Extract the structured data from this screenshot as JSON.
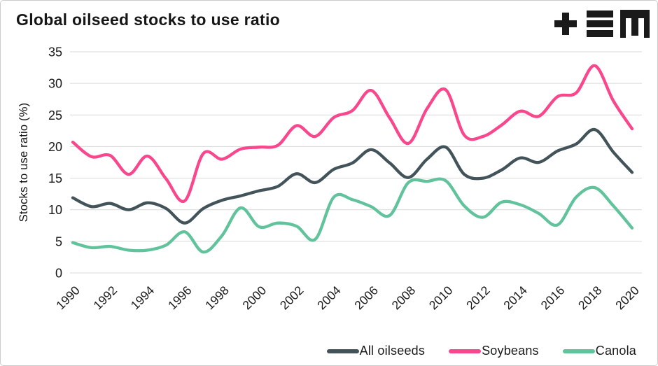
{
  "header": {
    "title": "Global oilseed stocks to use ratio",
    "logo_alt": "+EM"
  },
  "colors": {
    "all_oilseeds": "#42535a",
    "soybeans": "#f9468c",
    "canola": "#60c39c",
    "gridline": "#d9d9d9",
    "text": "#1a1a1a",
    "logo": "#1a1a1a",
    "card_border": "#cccccc"
  },
  "chart_data": {
    "type": "line",
    "title": "Global oilseed stocks to use ratio",
    "xlabel": "",
    "ylabel": "Stocks to use ratio (%)",
    "x": [
      1990,
      1991,
      1992,
      1993,
      1994,
      1995,
      1996,
      1997,
      1998,
      1999,
      2000,
      2001,
      2002,
      2003,
      2004,
      2005,
      2006,
      2007,
      2008,
      2009,
      2010,
      2011,
      2012,
      2013,
      2014,
      2015,
      2016,
      2017,
      2018,
      2019,
      2020
    ],
    "x_tick_labels": [
      "1990",
      "1992",
      "1994",
      "1996",
      "1998",
      "2000",
      "2002",
      "2004",
      "2006",
      "2008",
      "2010",
      "2012",
      "2014",
      "2016",
      "2018",
      "2020"
    ],
    "y_ticks": [
      0,
      5,
      10,
      15,
      20,
      25,
      30,
      35
    ],
    "ylim": [
      0,
      35
    ],
    "grid": "horizontal",
    "legend_position": "bottom-right",
    "series": [
      {
        "name": "All oilseeds",
        "color": "#42535a",
        "values": [
          11.9,
          10.5,
          11.0,
          10.0,
          11.1,
          10.2,
          7.9,
          10.2,
          11.5,
          12.2,
          13.0,
          13.7,
          15.7,
          14.3,
          16.4,
          17.4,
          19.5,
          17.4,
          15.1,
          18.0,
          19.9,
          15.6,
          15.0,
          16.3,
          18.2,
          17.5,
          19.3,
          20.4,
          22.7,
          19.1,
          15.9
        ]
      },
      {
        "name": "Soybeans",
        "color": "#f9468c",
        "values": [
          20.7,
          18.4,
          18.6,
          15.6,
          18.5,
          14.9,
          11.4,
          18.9,
          18.0,
          19.6,
          19.9,
          20.2,
          23.3,
          21.6,
          24.6,
          25.7,
          28.9,
          24.5,
          20.5,
          26.0,
          29.0,
          21.8,
          21.6,
          23.4,
          25.6,
          24.8,
          27.9,
          28.5,
          32.8,
          27.2,
          22.8
        ]
      },
      {
        "name": "Canola",
        "color": "#60c39c",
        "values": [
          4.8,
          4.0,
          4.2,
          3.6,
          3.6,
          4.4,
          6.5,
          3.3,
          5.9,
          10.3,
          7.3,
          7.9,
          7.4,
          5.3,
          12.0,
          11.6,
          10.5,
          9.1,
          14.3,
          14.5,
          14.6,
          10.6,
          8.8,
          11.2,
          10.8,
          9.4,
          7.6,
          12.0,
          13.5,
          10.6,
          7.1
        ]
      }
    ]
  }
}
